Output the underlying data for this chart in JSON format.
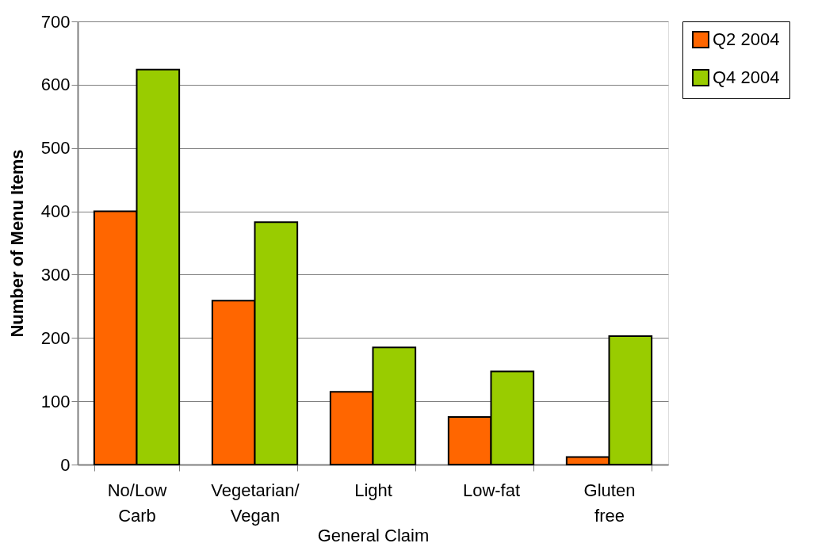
{
  "chart_data": {
    "type": "bar",
    "xlabel": "General Claim",
    "ylabel": "Number of Menu Items",
    "categories": [
      "No/Low\nCarb",
      "Vegetarian/\nVegan",
      "Light",
      "Low-fat",
      "Gluten\nfree"
    ],
    "series": [
      {
        "name": "Q2 2004",
        "color": "#ff6600",
        "values": [
          400,
          259,
          115,
          75,
          12
        ]
      },
      {
        "name": "Q4 2004",
        "color": "#99cc00",
        "values": [
          624,
          383,
          185,
          147,
          203
        ]
      }
    ],
    "ylim": [
      0,
      700
    ],
    "yticks": [
      0,
      100,
      200,
      300,
      400,
      500,
      600,
      700
    ],
    "grid": "y",
    "legend": "right"
  }
}
